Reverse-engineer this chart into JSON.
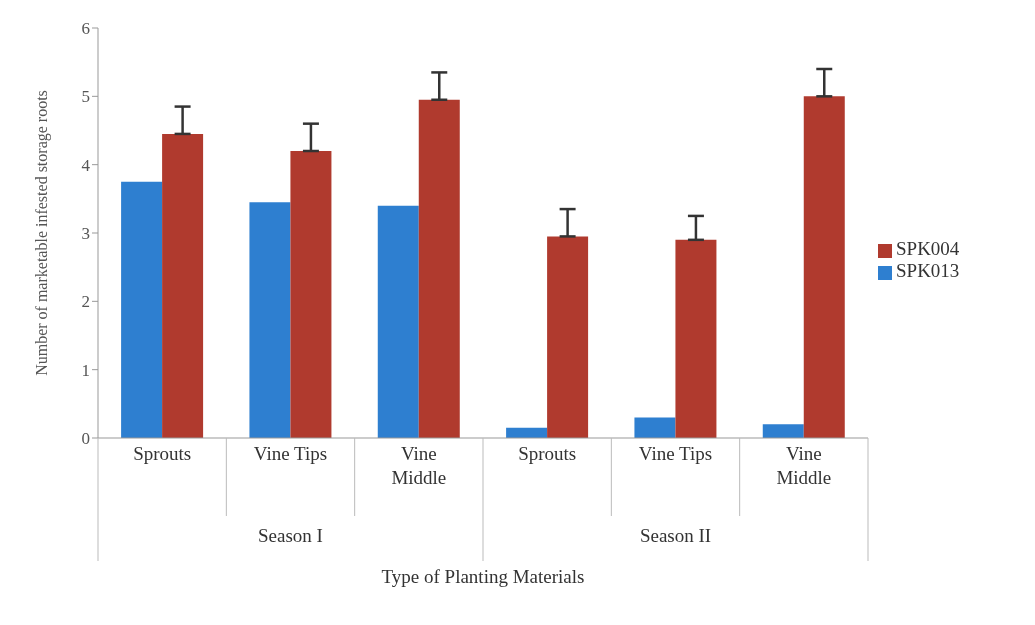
{
  "chart_data": {
    "type": "bar",
    "ylabel": "Number of marketable infested storage roots",
    "xlabel": "Type of Planting Materials",
    "categories": [
      "Sprouts",
      "Vine Tips",
      "Vine Middle",
      "Sprouts",
      "Vine Tips",
      "Vine Middle"
    ],
    "annotations": [
      "Season I",
      "Season II"
    ],
    "series": [
      {
        "name": "SPK013",
        "color": "#2e7fd0",
        "values": [
          3.75,
          3.45,
          3.4,
          0.15,
          0.3,
          0.2
        ]
      },
      {
        "name": "SPK004",
        "color": "#b03a2e",
        "values": [
          4.45,
          4.2,
          4.95,
          2.95,
          2.9,
          5.0
        ],
        "errors": [
          0.4,
          0.4,
          0.4,
          0.4,
          0.35,
          0.4
        ]
      }
    ],
    "ylim": [
      0,
      6
    ],
    "yticks": [
      0,
      1,
      2,
      3,
      4,
      5,
      6
    ],
    "grid": false,
    "legend": "right"
  }
}
